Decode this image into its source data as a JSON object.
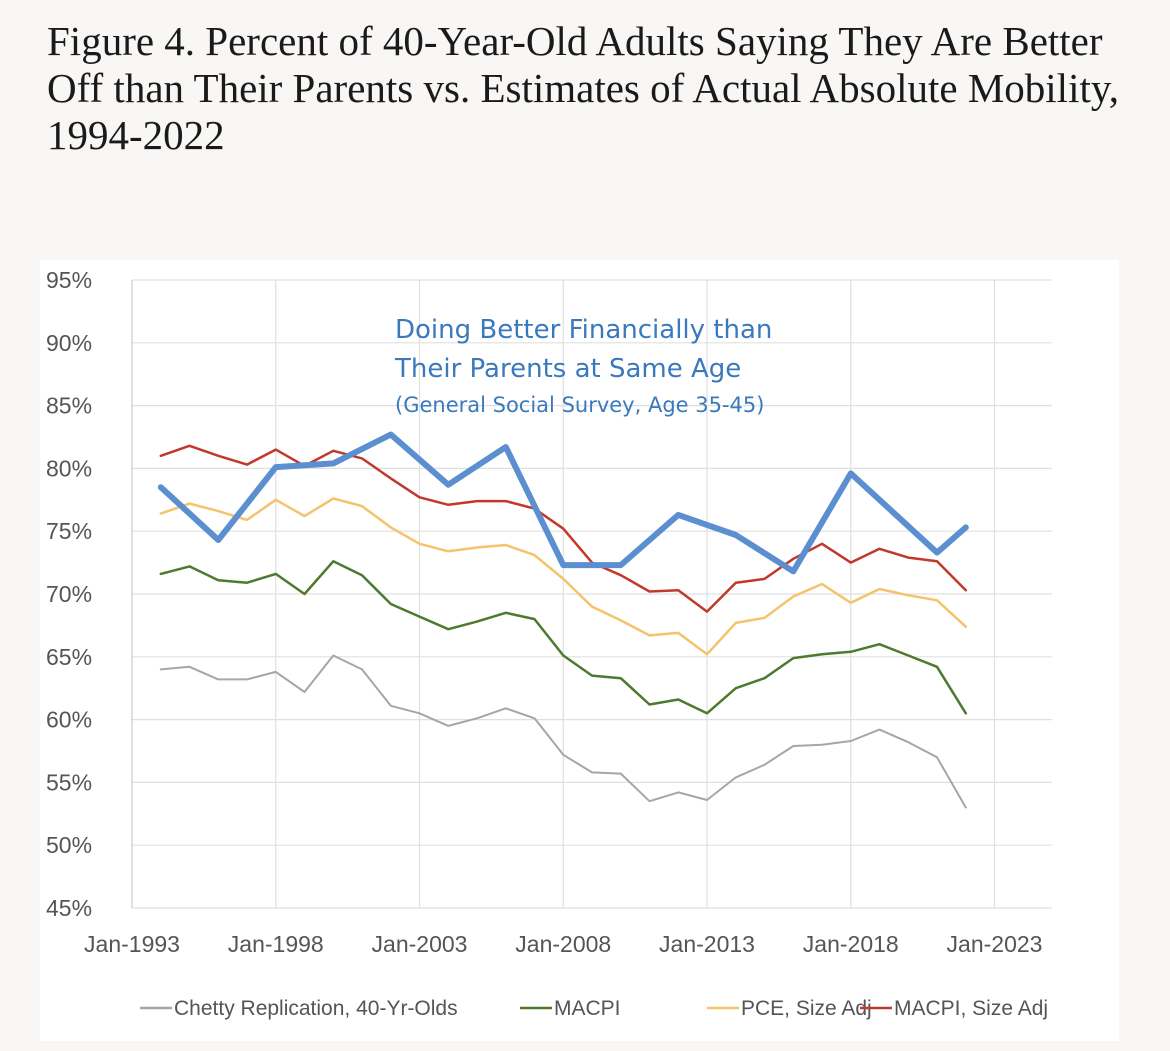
{
  "figure": {
    "title": "Figure 4. Percent of 40-Year-Old Adults Saying They Are Better Off than Their Parents vs. Estimates of Actual Absolute Mobility, 1994-2022"
  },
  "chart_data": {
    "type": "line",
    "title": "",
    "xlabel": "",
    "ylabel": "",
    "ylim": [
      45,
      95
    ],
    "y_ticks": [
      95,
      90,
      85,
      80,
      75,
      70,
      65,
      60,
      55,
      50,
      45
    ],
    "y_tick_labels": [
      "95%",
      "90%",
      "85%",
      "80%",
      "75%",
      "70%",
      "65%",
      "60%",
      "55%",
      "50%",
      "45%"
    ],
    "xlim": [
      1993,
      2025
    ],
    "x_ticks": [
      1993,
      1998,
      2003,
      2008,
      2013,
      2018,
      2023
    ],
    "x_tick_labels": [
      "Jan-1993",
      "Jan-1998",
      "Jan-2003",
      "Jan-2008",
      "Jan-2013",
      "Jan-2018",
      "Jan-2023"
    ],
    "grid": "horizontal and vertical",
    "legend_position": "bottom",
    "annotation": {
      "lines": [
        "Doing Better Financially than",
        "Their Parents at Same Age",
        "(General Social Survey, Age 35-45)"
      ],
      "color": "#3a79bd"
    },
    "series": [
      {
        "name": "Chetty Replication, 40-Yr-Olds",
        "color": "#a6a6a6",
        "width": 2,
        "in_legend": true,
        "x": [
          1994,
          1995,
          1996,
          1997,
          1998,
          1999,
          2000,
          2001,
          2002,
          2003,
          2004,
          2005,
          2006,
          2007,
          2008,
          2009,
          2010,
          2011,
          2012,
          2013,
          2014,
          2015,
          2016,
          2017,
          2018,
          2019,
          2020,
          2021,
          2022
        ],
        "values": [
          64.0,
          64.2,
          63.2,
          63.2,
          63.8,
          62.2,
          65.1,
          64.0,
          61.1,
          60.5,
          59.5,
          60.1,
          60.9,
          60.1,
          57.2,
          55.8,
          55.7,
          53.5,
          54.2,
          53.6,
          55.4,
          56.4,
          57.9,
          58.0,
          58.3,
          59.2,
          58.2,
          57.0,
          53.0
        ]
      },
      {
        "name": "MACPI",
        "color": "#4d7a2e",
        "width": 2.5,
        "in_legend": true,
        "x": [
          1994,
          1995,
          1996,
          1997,
          1998,
          1999,
          2000,
          2001,
          2002,
          2003,
          2004,
          2005,
          2006,
          2007,
          2008,
          2009,
          2010,
          2011,
          2012,
          2013,
          2014,
          2015,
          2016,
          2017,
          2018,
          2019,
          2020,
          2021,
          2022
        ],
        "values": [
          71.6,
          72.2,
          71.1,
          70.9,
          71.6,
          70.0,
          72.6,
          71.5,
          69.2,
          68.2,
          67.2,
          67.8,
          68.5,
          68.0,
          65.1,
          63.5,
          63.3,
          61.2,
          61.6,
          60.5,
          62.5,
          63.3,
          64.9,
          65.2,
          65.4,
          66.0,
          65.1,
          64.2,
          60.5
        ]
      },
      {
        "name": "PCE, Size Adj",
        "color": "#f5c36b",
        "width": 2.5,
        "in_legend": true,
        "x": [
          1994,
          1995,
          1996,
          1997,
          1998,
          1999,
          2000,
          2001,
          2002,
          2003,
          2004,
          2005,
          2006,
          2007,
          2008,
          2009,
          2010,
          2011,
          2012,
          2013,
          2014,
          2015,
          2016,
          2017,
          2018,
          2019,
          2020,
          2021,
          2022
        ],
        "values": [
          76.4,
          77.2,
          76.6,
          75.9,
          77.5,
          76.2,
          77.6,
          77.0,
          75.3,
          74.0,
          73.4,
          73.7,
          73.9,
          73.1,
          71.2,
          69.0,
          67.9,
          66.7,
          66.9,
          65.2,
          67.7,
          68.1,
          69.8,
          70.8,
          69.3,
          70.4,
          69.9,
          69.5,
          67.4
        ]
      },
      {
        "name": "MACPI, Size Adj",
        "color": "#c0392b",
        "width": 2.5,
        "in_legend": true,
        "x": [
          1994,
          1995,
          1996,
          1997,
          1998,
          1999,
          2000,
          2001,
          2002,
          2003,
          2004,
          2005,
          2006,
          2007,
          2008,
          2009,
          2010,
          2011,
          2012,
          2013,
          2014,
          2015,
          2016,
          2017,
          2018,
          2019,
          2020,
          2021,
          2022
        ],
        "values": [
          81.0,
          81.8,
          81.0,
          80.3,
          81.5,
          80.2,
          81.4,
          80.8,
          79.2,
          77.7,
          77.1,
          77.4,
          77.4,
          76.8,
          75.2,
          72.5,
          71.5,
          70.2,
          70.3,
          68.6,
          70.9,
          71.2,
          72.8,
          74.0,
          72.5,
          73.6,
          72.9,
          72.6,
          70.3
        ]
      },
      {
        "name": "",
        "color": "#5b8fd0",
        "width": 6,
        "in_legend": false,
        "x": [
          1994,
          1996,
          1998,
          2000,
          2002,
          2004,
          2006,
          2008,
          2010,
          2012,
          2014,
          2016,
          2018,
          2021,
          2022
        ],
        "values": [
          78.5,
          74.3,
          80.1,
          80.4,
          82.7,
          78.7,
          81.7,
          72.3,
          72.3,
          76.3,
          74.7,
          71.8,
          79.6,
          73.3,
          75.3
        ]
      }
    ]
  }
}
